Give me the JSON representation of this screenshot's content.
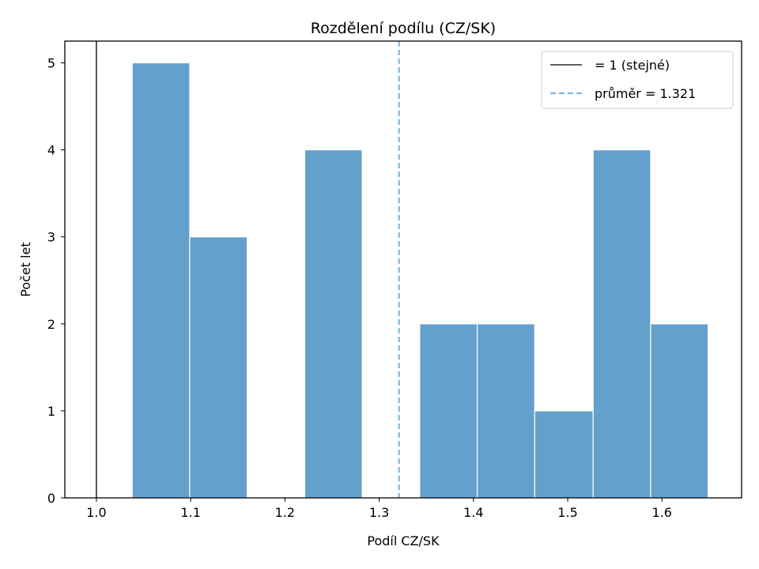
{
  "chart_data": {
    "type": "bar",
    "title": "Rozdělení podílu (CZ/SK)",
    "xlabel": "Podíl CZ/SK",
    "ylabel": "Počet let",
    "xlim": [
      0.9665,
      1.6845
    ],
    "ylim": [
      0,
      5.25
    ],
    "bins": [
      {
        "x0": 1.038,
        "x1": 1.099,
        "count": 5
      },
      {
        "x0": 1.099,
        "x1": 1.16,
        "count": 3
      },
      {
        "x0": 1.16,
        "x1": 1.221,
        "count": 0
      },
      {
        "x0": 1.221,
        "x1": 1.282,
        "count": 4
      },
      {
        "x0": 1.282,
        "x1": 1.343,
        "count": 0
      },
      {
        "x0": 1.343,
        "x1": 1.404,
        "count": 2
      },
      {
        "x0": 1.404,
        "x1": 1.465,
        "count": 2
      },
      {
        "x0": 1.465,
        "x1": 1.527,
        "count": 1
      },
      {
        "x0": 1.527,
        "x1": 1.588,
        "count": 4
      },
      {
        "x0": 1.588,
        "x1": 1.649,
        "count": 2
      }
    ],
    "x_ticks": [
      "1.0",
      "1.1",
      "1.2",
      "1.3",
      "1.4",
      "1.5",
      "1.6"
    ],
    "x_tick_values": [
      1.0,
      1.1,
      1.2,
      1.3,
      1.4,
      1.5,
      1.6
    ],
    "y_ticks": [
      "0",
      "1",
      "2",
      "3",
      "4",
      "5"
    ],
    "y_tick_values": [
      0,
      1,
      2,
      3,
      4,
      5
    ],
    "reference_lines": [
      {
        "value": 1.0,
        "label": "= 1 (stejné)",
        "style": "solid",
        "color": "#000000"
      },
      {
        "value": 1.321,
        "label": "průměr = 1.321",
        "style": "dashed",
        "color": "#7fb8e0"
      }
    ],
    "bar_color": "#4f93c5",
    "grid": false,
    "legend_position": "top-right"
  }
}
